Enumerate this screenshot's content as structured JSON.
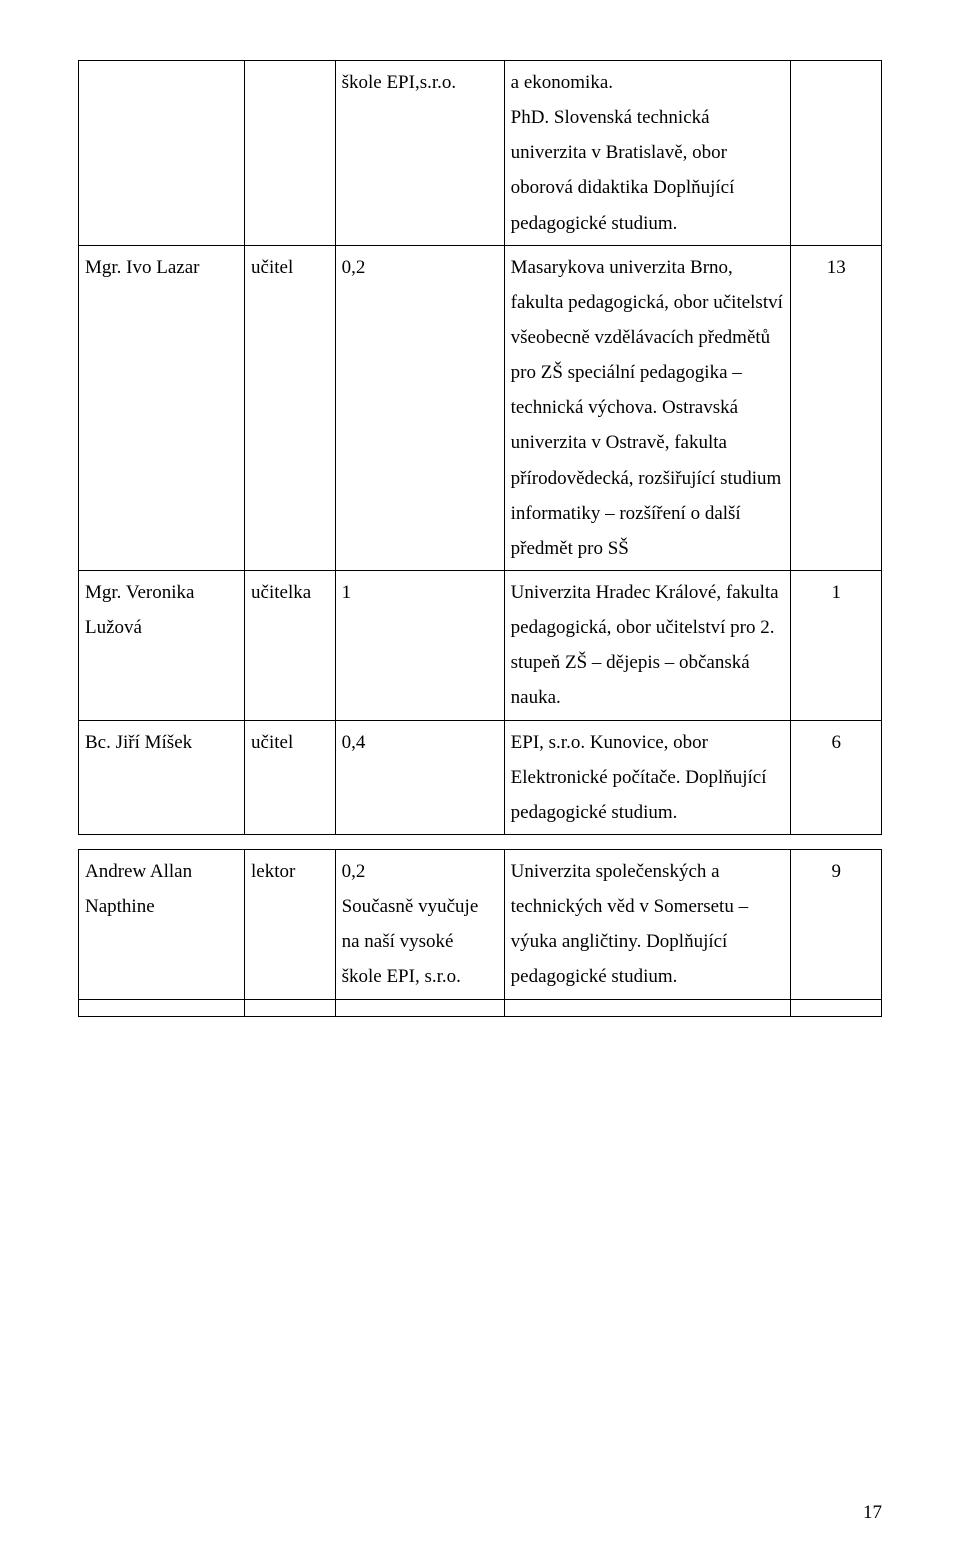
{
  "table1": {
    "rows": [
      {
        "name": "",
        "role": "",
        "load": "škole EPI,s.r.o.",
        "edu": "a ekonomika.\nPhD. Slovenská technická univerzita v Bratislavě, obor oborová didaktika Doplňující pedagogické studium.",
        "years": ""
      },
      {
        "name": "Mgr. Ivo Lazar",
        "role": "učitel",
        "load": "0,2",
        "edu": "Masarykova univerzita Brno, fakulta pedagogická, obor učitelství všeobecně vzdělávacích předmětů pro ZŠ speciální pedagogika – technická výchova. Ostravská univerzita v Ostravě, fakulta přírodovědecká, rozšiřující studium informatiky – rozšíření o další předmět pro SŠ",
        "years": "13"
      },
      {
        "name": "Mgr. Veronika Lužová",
        "role": "učitelka",
        "load": "1",
        "edu": "Univerzita Hradec Králové, fakulta pedagogická, obor učitelství pro 2. stupeň ZŠ – dějepis – občanská nauka.",
        "years": "1"
      },
      {
        "name": "Bc. Jiří Míšek",
        "role": "učitel",
        "load": "0,4",
        "edu": "EPI, s.r.o. Kunovice, obor Elektronické počítače. Doplňující pedagogické studium.",
        "years": "6"
      }
    ]
  },
  "table2": {
    "rows": [
      {
        "name": "Andrew Allan Napthine",
        "role": "lektor",
        "load": "0,2\nSoučasně vyučuje na naší vysoké škole EPI, s.r.o.",
        "edu": "Univerzita společenských  a technických věd v Somersetu – výuka angličtiny. Doplňující pedagogické studium.",
        "years": "9"
      }
    ]
  },
  "pageNumber": "17"
}
